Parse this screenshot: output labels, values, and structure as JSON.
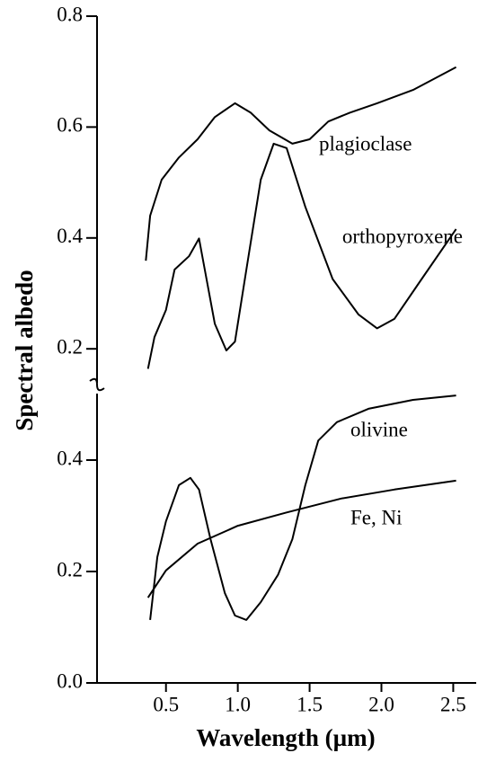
{
  "chart_data": [
    {
      "type": "line",
      "ylabel": "Spectral albedo",
      "xlim": [
        0.02,
        2.66
      ],
      "ylim": [
        0.129,
        0.8
      ],
      "yticks": [
        0.2,
        0.4,
        0.6,
        0.8
      ],
      "series": [
        {
          "name": "plagioclase",
          "color": "#000000",
          "x": [
            0.36,
            0.39,
            0.47,
            0.59,
            0.72,
            0.84,
            0.98,
            1.09,
            1.22,
            1.38,
            1.5,
            1.63,
            1.78,
            1.97,
            2.22,
            2.52
          ],
          "values": [
            0.359,
            0.44,
            0.505,
            0.545,
            0.578,
            0.618,
            0.643,
            0.626,
            0.594,
            0.57,
            0.578,
            0.61,
            0.626,
            0.643,
            0.667,
            0.708
          ]
        },
        {
          "name": "orthopyroxene",
          "color": "#000000",
          "x": [
            0.375,
            0.42,
            0.5,
            0.56,
            0.66,
            0.73,
            0.77,
            0.84,
            0.92,
            0.98,
            1.06,
            1.16,
            1.25,
            1.34,
            1.47,
            1.66,
            1.84,
            1.97,
            2.09,
            2.28,
            2.52
          ],
          "values": [
            0.164,
            0.221,
            0.27,
            0.343,
            0.367,
            0.399,
            0.343,
            0.245,
            0.197,
            0.213,
            0.343,
            0.505,
            0.57,
            0.562,
            0.456,
            0.326,
            0.262,
            0.237,
            0.254,
            0.326,
            0.416
          ]
        }
      ]
    },
    {
      "type": "line",
      "xlabel": "Wavelength (µm)",
      "xlim": [
        0.02,
        2.66
      ],
      "ylim": [
        0,
        0.529
      ],
      "xticks": [
        {
          "value": 0.5,
          "label": "0.5"
        },
        {
          "value": 1.0,
          "label": "1.0"
        },
        {
          "value": 1.5,
          "label": "1.5"
        },
        {
          "value": 2.0,
          "label": "2.0"
        },
        {
          "value": 2.5,
          "label": "2.5"
        }
      ],
      "yticks": [
        {
          "value": 0,
          "label": "0.0"
        },
        0.2,
        0.4
      ],
      "series": [
        {
          "name": "olivine",
          "color": "#000000",
          "x": [
            0.39,
            0.44,
            0.5,
            0.59,
            0.67,
            0.73,
            0.81,
            0.91,
            0.98,
            1.06,
            1.16,
            1.28,
            1.38,
            1.47,
            1.56,
            1.69,
            1.91,
            2.22,
            2.52
          ],
          "values": [
            0.113,
            0.226,
            0.29,
            0.355,
            0.368,
            0.347,
            0.258,
            0.161,
            0.121,
            0.113,
            0.145,
            0.194,
            0.258,
            0.355,
            0.435,
            0.468,
            0.492,
            0.508,
            0.516
          ]
        },
        {
          "name": "Fe, Ni",
          "color": "#000000",
          "x": [
            0.375,
            0.5,
            0.72,
            1.0,
            1.34,
            1.72,
            2.09,
            2.52
          ],
          "values": [
            0.153,
            0.202,
            0.25,
            0.282,
            0.306,
            0.331,
            0.347,
            0.363
          ]
        }
      ]
    }
  ]
}
